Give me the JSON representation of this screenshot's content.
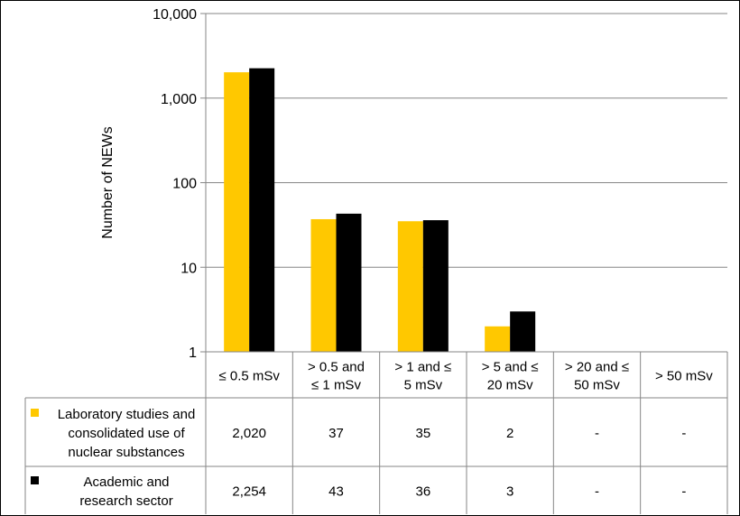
{
  "chart_data": {
    "type": "bar",
    "ylabel": "Number of NEWs",
    "yscale": "log",
    "ylim": [
      1,
      10000
    ],
    "y_ticks": [
      {
        "value": 1,
        "label": "1"
      },
      {
        "value": 10,
        "label": "10"
      },
      {
        "value": 100,
        "label": "100"
      },
      {
        "value": 1000,
        "label": "1,000"
      },
      {
        "value": 10000,
        "label": "10,000"
      }
    ],
    "grid": true,
    "categories": [
      [
        "≤ 0.5 mSv"
      ],
      [
        "> 0.5 and",
        "≤ 1 mSv"
      ],
      [
        "> 1 and ≤",
        "5 mSv"
      ],
      [
        "> 5 and ≤",
        "20 mSv"
      ],
      [
        "> 20 and ≤",
        "50 mSv"
      ],
      [
        "> 50 mSv"
      ]
    ],
    "series": [
      {
        "name": [
          "Laboratory studies and",
          "consolidated use of",
          "nuclear substances"
        ],
        "color": "#FFC800",
        "values": [
          2020,
          37,
          35,
          2,
          0,
          0
        ],
        "labels": [
          "2,020",
          "37",
          "35",
          "2",
          "-",
          "-"
        ]
      },
      {
        "name": [
          "Academic and",
          "research sector"
        ],
        "color": "#000000",
        "values": [
          2254,
          43,
          36,
          3,
          0,
          0
        ],
        "labels": [
          "2,254",
          "43",
          "36",
          "3",
          "-",
          "-"
        ]
      }
    ],
    "legend": "data-table"
  }
}
